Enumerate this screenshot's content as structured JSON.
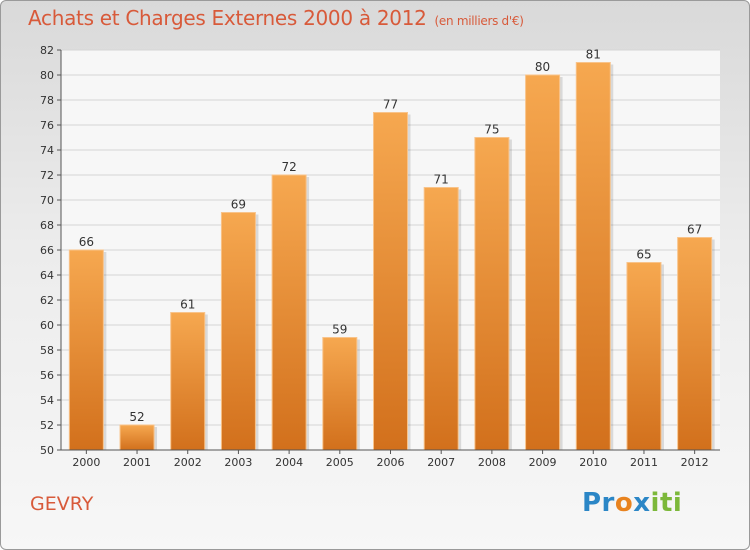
{
  "title": "Achats et Charges Externes 2000 à 2012",
  "subtitle": "(en milliers d'€)",
  "town": "GEVRY",
  "brand": "Proxiti",
  "colors": {
    "bar_top": "#f5a54e",
    "bar_bottom": "#d4731e",
    "title": "#d85a3a"
  },
  "chart_data": {
    "type": "bar",
    "title": "Achats et Charges Externes 2000 à 2012",
    "subtitle": "(en milliers d'€)",
    "categories": [
      "2000",
      "2001",
      "2002",
      "2003",
      "2004",
      "2005",
      "2006",
      "2007",
      "2008",
      "2009",
      "2010",
      "2011",
      "2012"
    ],
    "values": [
      66,
      52,
      61,
      69,
      72,
      59,
      77,
      71,
      75,
      80,
      81,
      65,
      67
    ],
    "ylim": [
      50,
      82
    ],
    "yticks": [
      50,
      52,
      54,
      56,
      58,
      60,
      62,
      64,
      66,
      68,
      70,
      72,
      74,
      76,
      78,
      80,
      82
    ],
    "grid": true,
    "xlabel": "",
    "ylabel": ""
  }
}
